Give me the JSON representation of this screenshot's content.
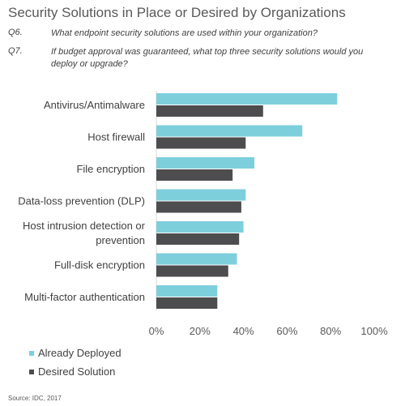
{
  "title": "Security Solutions in Place or Desired by Organizations",
  "questions": [
    {
      "num": "Q6.",
      "text": "What endpoint security solutions are used within your organization?"
    },
    {
      "num": "Q7.",
      "text": "If budget approval was guaranteed, what top three security solutions would you deploy or upgrade?"
    }
  ],
  "source": "Source: IDC, 2017",
  "colors": {
    "deployed": "#7ecfdc",
    "desired": "#4d4d4f"
  },
  "chart_data": {
    "type": "bar",
    "orientation": "horizontal",
    "categories": [
      [
        "Antivirus/Antimalware"
      ],
      [
        "Host firewall"
      ],
      [
        "File encryption"
      ],
      [
        "Data-loss prevention (DLP)"
      ],
      [
        "Host intrusion detection or",
        "prevention"
      ],
      [
        "Full-disk encryption"
      ],
      [
        "Multi-factor authentication"
      ]
    ],
    "series": [
      {
        "name": "Already Deployed",
        "values": [
          83,
          67,
          45,
          41,
          40,
          37,
          28
        ]
      },
      {
        "name": "Desired Solution",
        "values": [
          49,
          41,
          35,
          39,
          38,
          33,
          28
        ]
      }
    ],
    "xlim": [
      0,
      100
    ],
    "xticks": [
      "0%",
      "20%",
      "40%",
      "60%",
      "80%",
      "100%"
    ],
    "grid": false,
    "legend_position": "bottom-left"
  }
}
